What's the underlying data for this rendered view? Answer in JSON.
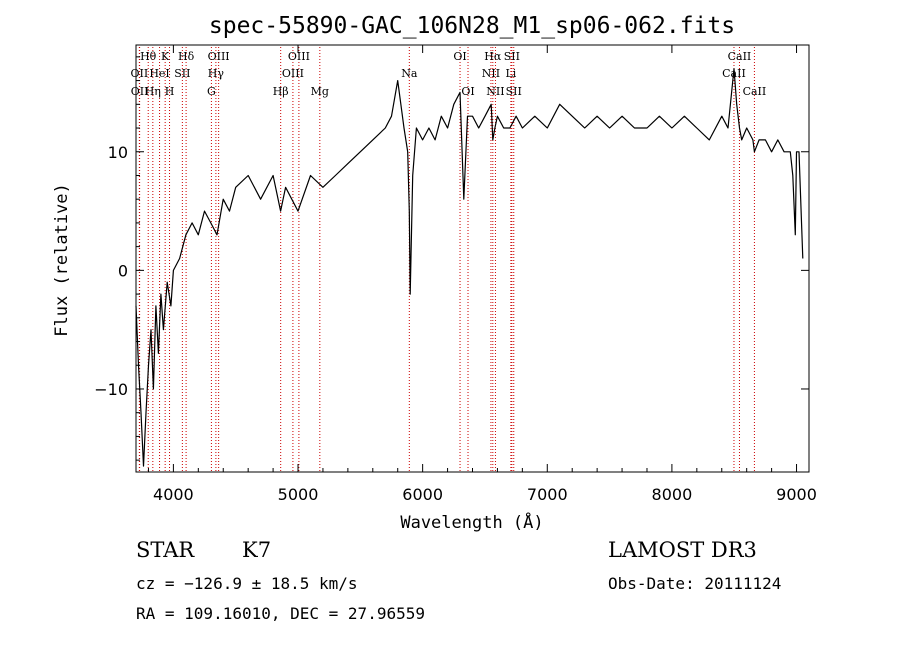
{
  "chart_data": {
    "type": "line",
    "title": "spec-55890-GAC_106N28_M1_sp06-062.fits",
    "xlabel": "Wavelength (Å)",
    "ylabel": "Flux (relative)",
    "xlim": [
      3700,
      9100
    ],
    "ylim": [
      -17,
      19
    ],
    "xticks": [
      4000,
      5000,
      6000,
      7000,
      8000,
      9000
    ],
    "yticks": [
      -10,
      0,
      10
    ],
    "series": [
      {
        "name": "flux",
        "x": [
          3700,
          3720,
          3740,
          3760,
          3780,
          3800,
          3820,
          3840,
          3860,
          3880,
          3900,
          3920,
          3950,
          3980,
          4000,
          4050,
          4100,
          4150,
          4200,
          4250,
          4300,
          4350,
          4400,
          4450,
          4500,
          4600,
          4700,
          4800,
          4860,
          4900,
          5000,
          5100,
          5200,
          5300,
          5400,
          5500,
          5600,
          5700,
          5750,
          5800,
          5850,
          5880,
          5893,
          5900,
          5920,
          5950,
          6000,
          6050,
          6100,
          6150,
          6200,
          6250,
          6300,
          6330,
          6360,
          6400,
          6450,
          6500,
          6550,
          6563,
          6580,
          6600,
          6650,
          6700,
          6750,
          6800,
          6900,
          7000,
          7100,
          7200,
          7300,
          7400,
          7500,
          7600,
          7700,
          7800,
          7900,
          8000,
          8100,
          8200,
          8300,
          8400,
          8450,
          8498,
          8520,
          8542,
          8560,
          8600,
          8650,
          8662,
          8700,
          8750,
          8800,
          8850,
          8900,
          8950,
          8970,
          8990,
          9000,
          9020,
          9050
        ],
        "y": [
          -3,
          -8,
          -12,
          -16.5,
          -12,
          -8,
          -5,
          -10,
          -3,
          -7,
          -2,
          -5,
          -1,
          -3,
          0,
          1,
          3,
          4,
          3,
          5,
          4,
          3,
          6,
          5,
          7,
          8,
          6,
          8,
          5,
          7,
          5,
          8,
          7,
          8,
          9,
          10,
          11,
          12,
          13,
          16,
          12,
          10,
          5,
          -2,
          8,
          12,
          11,
          12,
          11,
          13,
          12,
          14,
          15,
          6,
          13,
          13,
          12,
          13,
          14,
          11,
          12,
          13,
          12,
          12,
          13,
          12,
          13,
          12,
          14,
          13,
          12,
          13,
          12,
          13,
          12,
          12,
          13,
          12,
          13,
          12,
          11,
          13,
          12,
          17,
          14,
          12,
          11,
          12,
          11,
          10,
          11,
          11,
          10,
          11,
          10,
          10,
          8,
          3,
          10,
          10,
          1
        ]
      }
    ],
    "spectral_lines": [
      {
        "label": "Hθ",
        "wavelength": 3798,
        "row": 1
      },
      {
        "label": "OII",
        "wavelength": 3727,
        "row": 2
      },
      {
        "label": "OII",
        "wavelength": 3729,
        "row": 3
      },
      {
        "label": "K",
        "wavelength": 3934,
        "row": 1
      },
      {
        "label": "HeI",
        "wavelength": 3889,
        "row": 2
      },
      {
        "label": "Hη",
        "wavelength": 3835,
        "row": 3
      },
      {
        "label": "SII",
        "wavelength": 4072,
        "row": 2
      },
      {
        "label": "H",
        "wavelength": 3969,
        "row": 3
      },
      {
        "label": "Hδ",
        "wavelength": 4102,
        "row": 1
      },
      {
        "label": "OIII",
        "wavelength": 4363,
        "row": 1
      },
      {
        "label": "Hγ",
        "wavelength": 4341,
        "row": 2
      },
      {
        "label": "G",
        "wavelength": 4305,
        "row": 3
      },
      {
        "label": "OIII",
        "wavelength": 5007,
        "row": 1
      },
      {
        "label": "OIII",
        "wavelength": 4959,
        "row": 2
      },
      {
        "label": "Hβ",
        "wavelength": 4861,
        "row": 3
      },
      {
        "label": "Mg",
        "wavelength": 5175,
        "row": 3
      },
      {
        "label": "Na",
        "wavelength": 5893,
        "row": 2
      },
      {
        "label": "OI",
        "wavelength": 6300,
        "row": 1
      },
      {
        "label": "OI",
        "wavelength": 6364,
        "row": 3
      },
      {
        "label": "Hα",
        "wavelength": 6563,
        "row": 1
      },
      {
        "label": "SII",
        "wavelength": 6716,
        "row": 1
      },
      {
        "label": "NII",
        "wavelength": 6548,
        "row": 2
      },
      {
        "label": "Li",
        "wavelength": 6708,
        "row": 2
      },
      {
        "label": "NII",
        "wavelength": 6584,
        "row": 3
      },
      {
        "label": "SII",
        "wavelength": 6731,
        "row": 3
      },
      {
        "label": "CaII",
        "wavelength": 8542,
        "row": 1
      },
      {
        "label": "CaII",
        "wavelength": 8498,
        "row": 2
      },
      {
        "label": "CaII",
        "wavelength": 8662,
        "row": 3
      }
    ],
    "line_color": "#cc0000",
    "flux_color": "#000000"
  },
  "info": {
    "object_class": "STAR",
    "subclass": "K7",
    "survey": "LAMOST DR3",
    "cz": "cz = −126.9 ± 18.5 km/s",
    "obs_date": "Obs-Date: 20111124",
    "coords": "RA = 109.16010, DEC =  27.96559"
  }
}
